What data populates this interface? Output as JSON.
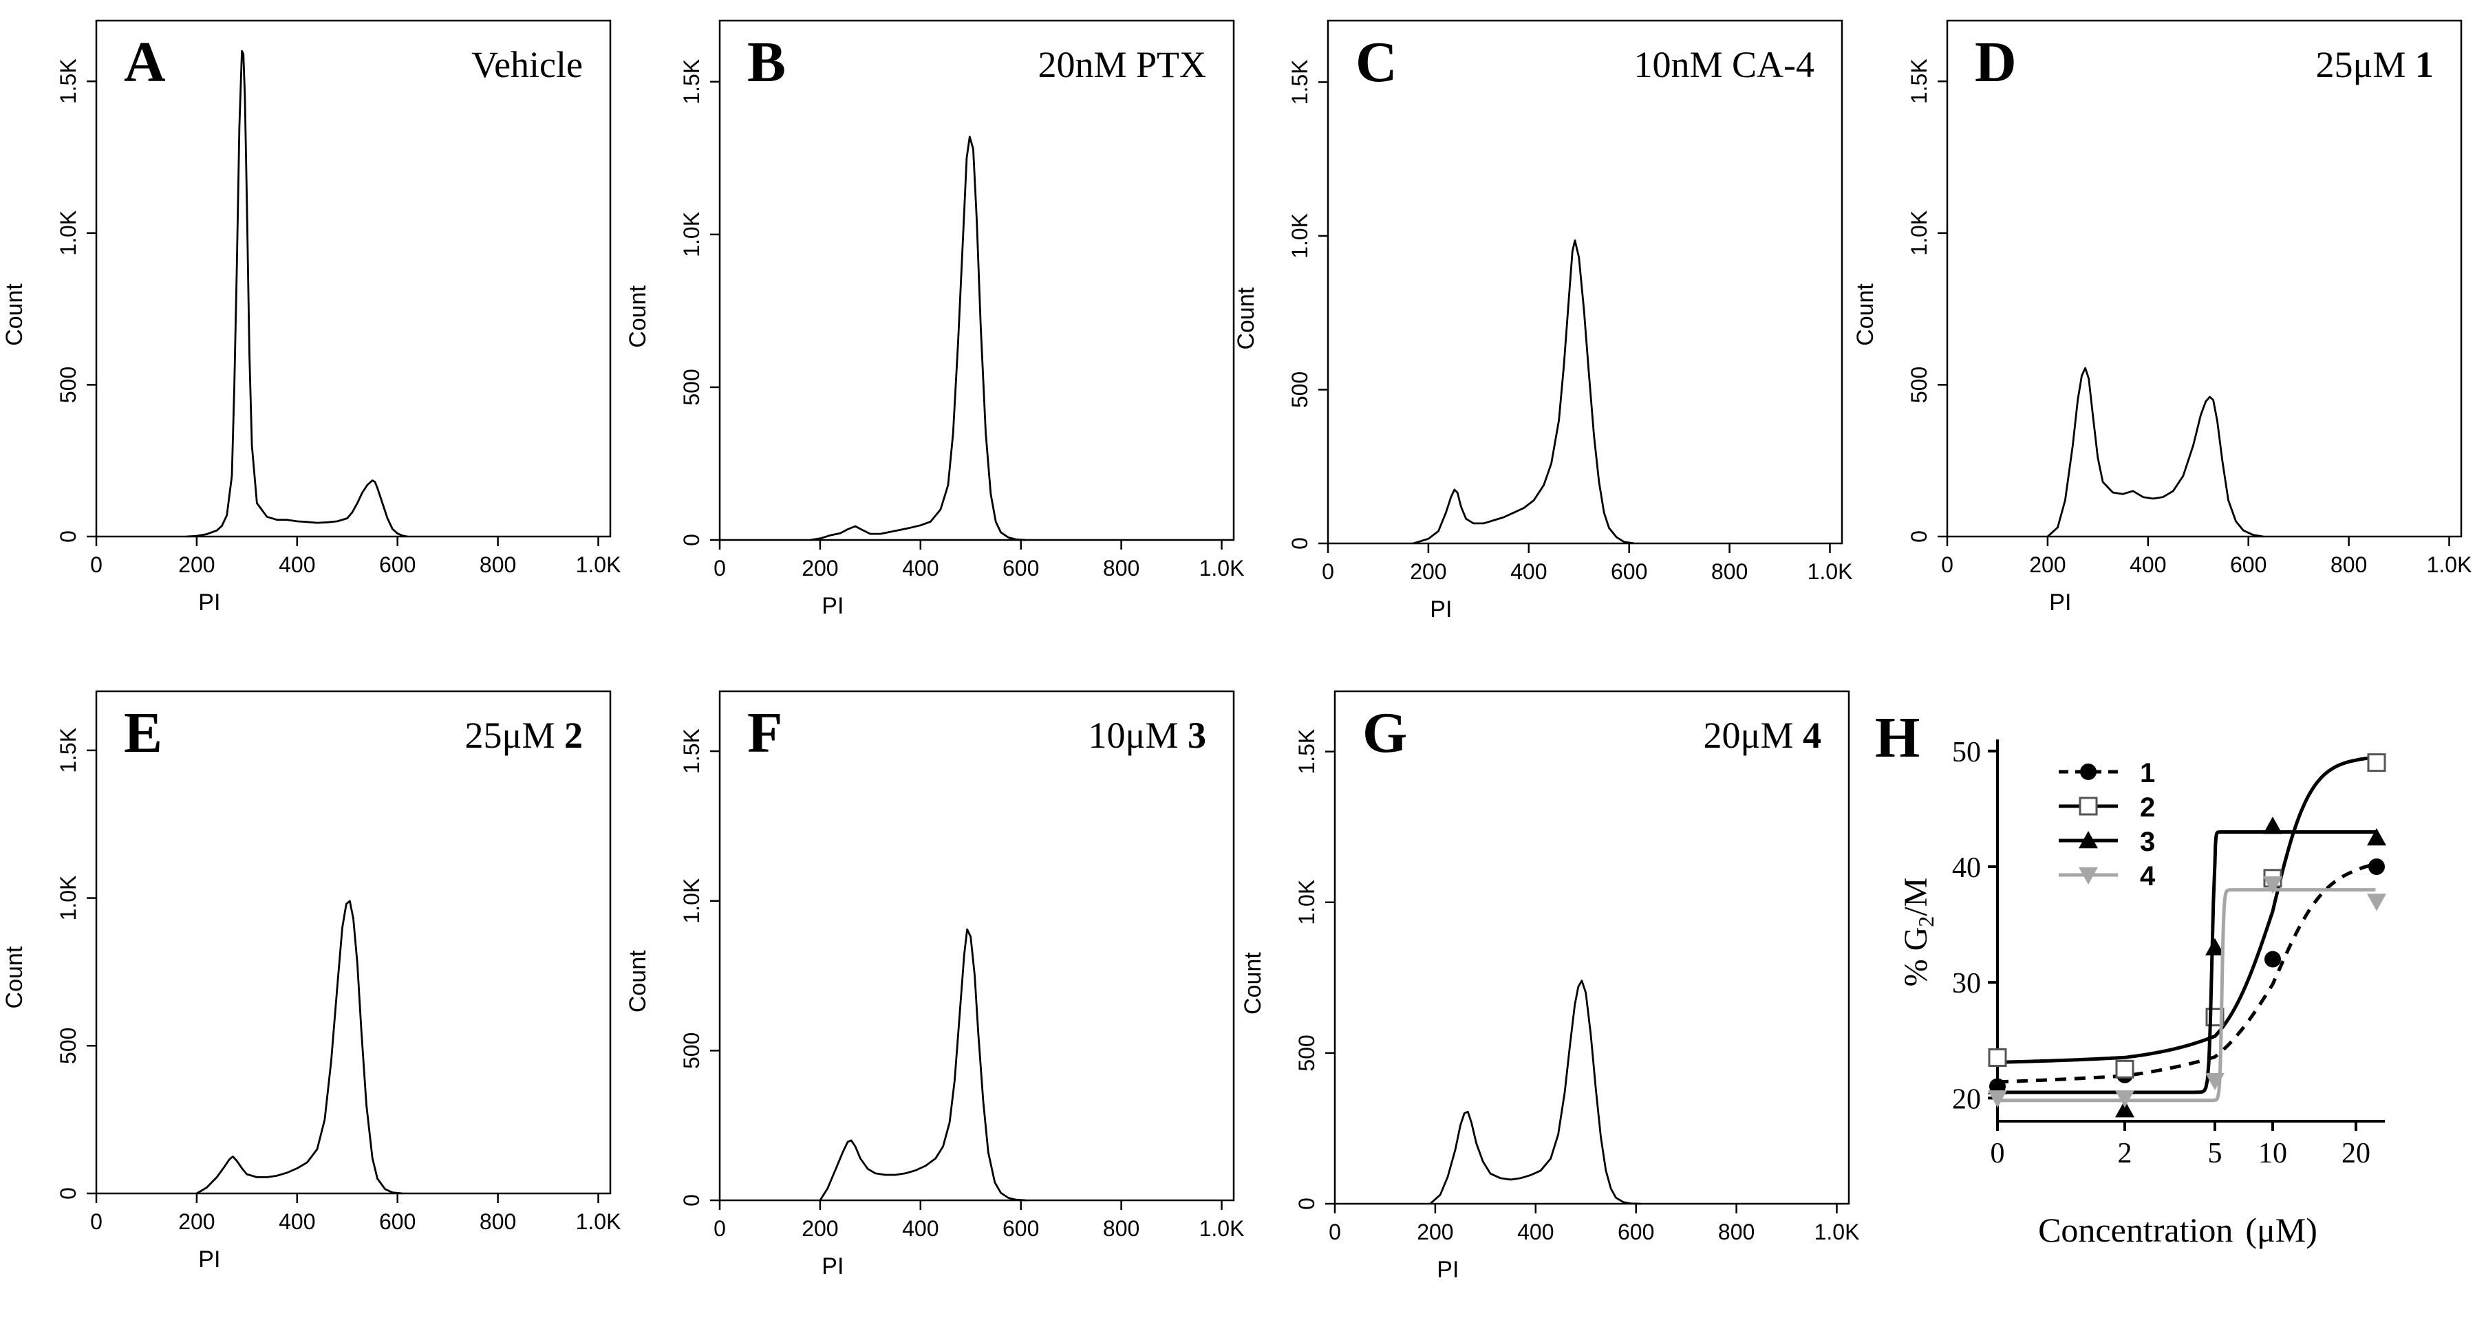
{
  "colors": {
    "ink": "#000000",
    "grey": "#a6a6a6",
    "background": "#ffffff"
  },
  "chart_data": [
    {
      "type": "line",
      "letter": "A",
      "label": "Vehicle",
      "label_bold": "",
      "xlabel": "PI",
      "ylabel": "Count",
      "xticks": [
        "0",
        "200",
        "400",
        "600",
        "800",
        "1.0K"
      ],
      "yticks": [
        "0",
        "500",
        "1.0K",
        "1.5K"
      ],
      "xlim": [
        0,
        1024
      ],
      "ylim": [
        0,
        1700
      ],
      "x": [
        180,
        200,
        220,
        240,
        250,
        260,
        270,
        275,
        280,
        285,
        290,
        293,
        296,
        300,
        305,
        310,
        320,
        340,
        360,
        380,
        400,
        420,
        440,
        460,
        480,
        500,
        510,
        520,
        530,
        540,
        550,
        555,
        560,
        570,
        580,
        590,
        600,
        610,
        620
      ],
      "y": [
        0,
        2,
        8,
        20,
        35,
        70,
        200,
        500,
        900,
        1350,
        1600,
        1590,
        1450,
        1100,
        600,
        300,
        110,
        65,
        55,
        55,
        50,
        48,
        45,
        47,
        50,
        60,
        80,
        110,
        145,
        170,
        185,
        180,
        160,
        110,
        60,
        25,
        10,
        3,
        0
      ]
    },
    {
      "type": "line",
      "letter": "B",
      "label": "20nM PTX",
      "label_bold": "",
      "xlabel": "PI",
      "ylabel": "Count",
      "xticks": [
        "0",
        "200",
        "400",
        "600",
        "800",
        "1.0K"
      ],
      "yticks": [
        "0",
        "500",
        "1.0K",
        "1.5K"
      ],
      "xlim": [
        0,
        1024
      ],
      "ylim": [
        0,
        1700
      ],
      "x": [
        180,
        200,
        220,
        240,
        255,
        270,
        285,
        300,
        320,
        350,
        380,
        400,
        420,
        440,
        455,
        465,
        475,
        485,
        492,
        498,
        505,
        512,
        520,
        530,
        540,
        550,
        560,
        575,
        590,
        610
      ],
      "y": [
        0,
        5,
        15,
        22,
        35,
        45,
        32,
        20,
        20,
        30,
        40,
        48,
        60,
        100,
        180,
        350,
        650,
        1000,
        1250,
        1320,
        1280,
        1050,
        700,
        350,
        150,
        60,
        25,
        8,
        2,
        0
      ]
    },
    {
      "type": "line",
      "letter": "C",
      "label": "10nM CA-4",
      "label_bold": "",
      "xlabel": "PI",
      "ylabel": "Count",
      "xticks": [
        "0",
        "200",
        "400",
        "600",
        "800",
        "1.0K"
      ],
      "yticks": [
        "0",
        "500",
        "1.0K",
        "1.5K"
      ],
      "xlim": [
        0,
        1024
      ],
      "ylim": [
        0,
        1700
      ],
      "x": [
        170,
        200,
        220,
        235,
        245,
        252,
        258,
        265,
        275,
        290,
        310,
        330,
        350,
        370,
        390,
        410,
        430,
        445,
        460,
        470,
        480,
        487,
        492,
        500,
        510,
        520,
        530,
        540,
        550,
        560,
        575,
        590,
        610
      ],
      "y": [
        0,
        15,
        40,
        100,
        150,
        175,
        165,
        120,
        80,
        65,
        65,
        75,
        85,
        100,
        115,
        140,
        190,
        260,
        400,
        580,
        800,
        950,
        985,
        930,
        760,
        550,
        350,
        200,
        100,
        50,
        20,
        5,
        0
      ]
    },
    {
      "type": "line",
      "letter": "D",
      "label": "25μM ",
      "label_bold": "1",
      "xlabel": "PI",
      "ylabel": "Count",
      "xticks": [
        "0",
        "200",
        "400",
        "600",
        "800",
        "1.0K"
      ],
      "yticks": [
        "0",
        "500",
        "1.0K",
        "1.5K"
      ],
      "xlim": [
        0,
        1024
      ],
      "ylim": [
        0,
        1700
      ],
      "x": [
        200,
        220,
        235,
        250,
        260,
        268,
        275,
        282,
        290,
        300,
        310,
        330,
        350,
        370,
        380,
        390,
        410,
        430,
        450,
        470,
        490,
        505,
        515,
        523,
        530,
        538,
        548,
        560,
        575,
        590,
        610,
        630
      ],
      "y": [
        0,
        30,
        120,
        300,
        450,
        530,
        555,
        520,
        400,
        260,
        180,
        145,
        140,
        150,
        140,
        130,
        125,
        130,
        150,
        200,
        300,
        400,
        445,
        460,
        450,
        380,
        250,
        120,
        50,
        20,
        5,
        0
      ]
    },
    {
      "type": "line",
      "letter": "E",
      "label": "25μM ",
      "label_bold": "2",
      "xlabel": "PI",
      "ylabel": "Count",
      "xticks": [
        "0",
        "200",
        "400",
        "600",
        "800",
        "1.0K"
      ],
      "yticks": [
        "0",
        "500",
        "1.0K",
        "1.5K"
      ],
      "xlim": [
        0,
        1024
      ],
      "ylim": [
        0,
        1700
      ],
      "x": [
        200,
        220,
        240,
        255,
        265,
        272,
        280,
        290,
        300,
        320,
        340,
        360,
        380,
        400,
        420,
        440,
        455,
        468,
        480,
        490,
        498,
        505,
        512,
        520,
        528,
        538,
        550,
        560,
        575,
        590,
        610
      ],
      "y": [
        0,
        20,
        55,
        90,
        115,
        125,
        110,
        85,
        65,
        55,
        55,
        60,
        70,
        85,
        105,
        150,
        250,
        450,
        700,
        900,
        980,
        990,
        930,
        780,
        550,
        300,
        120,
        50,
        15,
        3,
        0
      ]
    },
    {
      "type": "line",
      "letter": "F",
      "label": "10μM ",
      "label_bold": "3",
      "xlabel": "PI",
      "ylabel": "Count",
      "xticks": [
        "0",
        "200",
        "400",
        "600",
        "800",
        "1.0K"
      ],
      "yticks": [
        "0",
        "500",
        "1.0K",
        "1.5K"
      ],
      "xlim": [
        0,
        1024
      ],
      "ylim": [
        0,
        1700
      ],
      "x": [
        200,
        215,
        230,
        245,
        255,
        262,
        270,
        280,
        295,
        310,
        330,
        350,
        370,
        390,
        410,
        430,
        445,
        458,
        468,
        478,
        487,
        493,
        500,
        508,
        515,
        525,
        535,
        548,
        560,
        575,
        590,
        610
      ],
      "y": [
        0,
        40,
        100,
        160,
        195,
        200,
        180,
        140,
        105,
        90,
        85,
        85,
        90,
        100,
        115,
        140,
        180,
        260,
        400,
        620,
        820,
        905,
        880,
        750,
        560,
        330,
        160,
        60,
        25,
        8,
        2,
        0
      ]
    },
    {
      "type": "line",
      "letter": "G",
      "label": "20μM ",
      "label_bold": "4",
      "xlabel": "PI",
      "ylabel": "Count",
      "xticks": [
        "0",
        "200",
        "400",
        "600",
        "800",
        "1.0K"
      ],
      "yticks": [
        "0",
        "500",
        "1.0K",
        "1.5K"
      ],
      "xlim": [
        0,
        1024
      ],
      "ylim": [
        0,
        1700
      ],
      "x": [
        190,
        210,
        225,
        240,
        250,
        258,
        265,
        272,
        282,
        295,
        310,
        330,
        350,
        370,
        390,
        410,
        430,
        445,
        458,
        468,
        478,
        485,
        492,
        500,
        510,
        520,
        530,
        540,
        550,
        560,
        575,
        590,
        610
      ],
      "y": [
        0,
        30,
        90,
        180,
        260,
        300,
        305,
        270,
        200,
        140,
        100,
        85,
        80,
        85,
        95,
        110,
        150,
        230,
        370,
        520,
        660,
        720,
        740,
        700,
        560,
        380,
        220,
        110,
        50,
        20,
        5,
        1,
        0
      ]
    },
    {
      "type": "line",
      "letter": "H",
      "xlabel": "Concentration",
      "xunit": "(μM)",
      "ylabel": "% G2/M",
      "xticks": [
        "0",
        "2",
        "5",
        "10",
        "20"
      ],
      "yticks": [
        "20",
        "30",
        "40",
        "50"
      ],
      "ylim": [
        18,
        51
      ],
      "x": [
        0,
        2,
        5,
        10,
        20
      ],
      "series": [
        {
          "name": "1",
          "marker": "circle",
          "line": "dashed",
          "color": "#000000",
          "x": [
            0,
            2,
            5,
            10,
            20
          ],
          "values": [
            21,
            22,
            27,
            32,
            40
          ]
        },
        {
          "name": "2",
          "marker": "square-open",
          "line": "solid",
          "color": "#000000",
          "x": [
            0,
            2,
            5,
            10,
            20
          ],
          "values": [
            23.5,
            22.5,
            27,
            39,
            49
          ]
        },
        {
          "name": "3",
          "marker": "triangle-up",
          "line": "solid",
          "color": "#000000",
          "x": [
            0,
            2,
            5,
            10,
            20
          ],
          "values": [
            21,
            19,
            33,
            43.5,
            42.5
          ]
        },
        {
          "name": "4",
          "marker": "triangle-down",
          "line": "solid",
          "color": "#a6a6a6",
          "x": [
            0,
            2,
            5,
            10,
            20
          ],
          "values": [
            20,
            20,
            21.5,
            38.5,
            37
          ]
        }
      ]
    }
  ]
}
